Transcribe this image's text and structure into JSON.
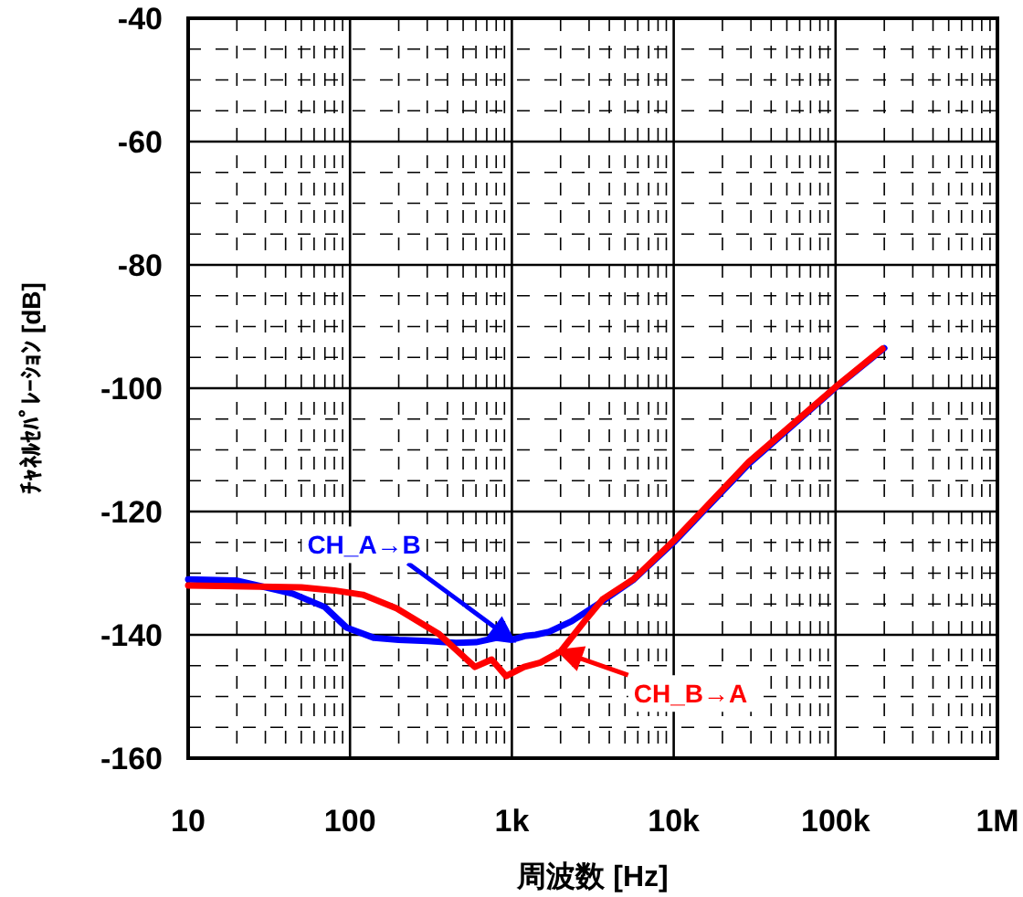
{
  "chart_data": {
    "type": "line",
    "xlabel": "周波数 [Hz]",
    "ylabel": "ﾁｬﾈﾙｾﾊﾟﾚｰｼｮﾝ [dB]",
    "log": "x",
    "grid": true,
    "legend": false,
    "line_style": "solid",
    "marker": "none",
    "xlim": [
      10,
      1000000
    ],
    "ylim": [
      -160,
      -40
    ],
    "xticks": [
      {
        "value": 10,
        "label": "10"
      },
      {
        "value": 100,
        "label": "100"
      },
      {
        "value": 1000,
        "label": "1k"
      },
      {
        "value": 10000,
        "label": "10k"
      },
      {
        "value": 100000,
        "label": "100k"
      },
      {
        "value": 1000000,
        "label": "1M"
      }
    ],
    "yticks": [
      -160,
      -140,
      -120,
      -100,
      -80,
      -60,
      -40
    ],
    "series": [
      {
        "name": "CH_A→B",
        "color": "#0000ff",
        "x": [
          10,
          20,
          44,
          70,
          95,
          141,
          200,
          300,
          450,
          600,
          800,
          1000,
          1200,
          1400,
          1700,
          2340,
          3650,
          5680,
          10000,
          29000,
          99000,
          200000
        ],
        "values": [
          -131,
          -131.2,
          -133.3,
          -135.5,
          -138.8,
          -140.5,
          -140.8,
          -141,
          -141.3,
          -141.2,
          -140.5,
          -140.8,
          -140.2,
          -140,
          -139.5,
          -137.8,
          -134.5,
          -131,
          -125,
          -112.3,
          -100,
          -93.5
        ]
      },
      {
        "name": "CH_B→A",
        "color": "#ff0000",
        "x": [
          10,
          50,
          80,
          120,
          194,
          352,
          591,
          750,
          921,
          1190,
          1500,
          2000,
          2810,
          3650,
          5680,
          10300,
          29000,
          99000,
          195000
        ],
        "values": [
          -132,
          -132.3,
          -132.8,
          -133.5,
          -135.7,
          -139.8,
          -145.2,
          -144,
          -146.7,
          -145.2,
          -144.5,
          -142.7,
          -137.8,
          -134.2,
          -130.9,
          -124.4,
          -112,
          -99.9,
          -93.6
        ]
      }
    ]
  }
}
